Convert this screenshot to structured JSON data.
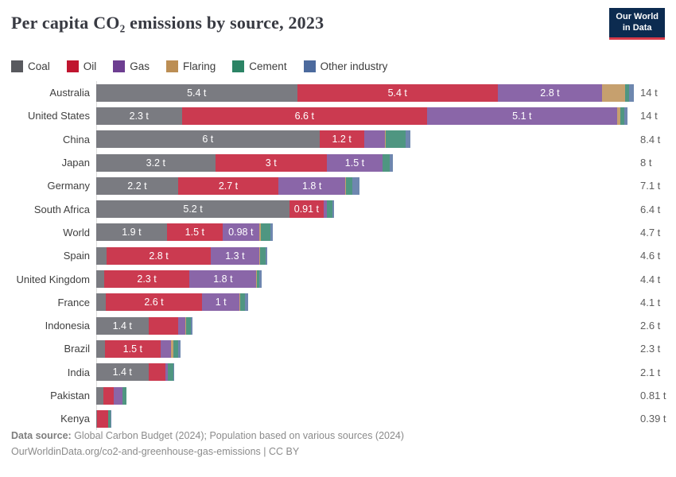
{
  "header": {
    "title": "Per capita CO₂ emissions by source, 2023",
    "logo": {
      "line1": "Our World",
      "line2": "in Data"
    }
  },
  "chart_data": {
    "type": "bar",
    "stacked": true,
    "orientation": "horizontal",
    "unit": "tonnes per person",
    "axis_max": 14.5,
    "colors": {
      "coal": {
        "legend": "#58595e",
        "bar": "#7a7b81"
      },
      "oil": {
        "legend": "#c0152f",
        "bar": "#cb3a50"
      },
      "gas": {
        "legend": "#6d3e91",
        "bar": "#8a66a8"
      },
      "flaring": {
        "legend": "#bc8e54",
        "bar": "#c6a06e"
      },
      "cement": {
        "legend": "#2c8465",
        "bar": "#4f9681"
      },
      "other": {
        "legend": "#4c6a9d",
        "bar": "#6e87af"
      }
    },
    "legend": [
      {
        "key": "coal",
        "label": "Coal"
      },
      {
        "key": "oil",
        "label": "Oil"
      },
      {
        "key": "gas",
        "label": "Gas"
      },
      {
        "key": "flaring",
        "label": "Flaring"
      },
      {
        "key": "cement",
        "label": "Cement"
      },
      {
        "key": "other",
        "label": "Other industry"
      }
    ],
    "rows": [
      {
        "entity": "Australia",
        "total_label": "14 t",
        "segments": [
          {
            "key": "coal",
            "value": 5.4,
            "label": "5.4 t"
          },
          {
            "key": "oil",
            "value": 5.4,
            "label": "5.4 t"
          },
          {
            "key": "gas",
            "value": 2.8,
            "label": "2.8 t"
          },
          {
            "key": "flaring",
            "value": 0.62,
            "label": ""
          },
          {
            "key": "cement",
            "value": 0.1,
            "label": ""
          },
          {
            "key": "other",
            "value": 0.14,
            "label": ""
          }
        ]
      },
      {
        "entity": "United States",
        "total_label": "14 t",
        "segments": [
          {
            "key": "coal",
            "value": 2.3,
            "label": "2.3 t"
          },
          {
            "key": "oil",
            "value": 6.6,
            "label": "6.6 t"
          },
          {
            "key": "gas",
            "value": 5.1,
            "label": "5.1 t"
          },
          {
            "key": "flaring",
            "value": 0.1,
            "label": ""
          },
          {
            "key": "cement",
            "value": 0.1,
            "label": ""
          },
          {
            "key": "other",
            "value": 0.09,
            "label": ""
          }
        ]
      },
      {
        "entity": "China",
        "total_label": "8.4 t",
        "segments": [
          {
            "key": "coal",
            "value": 6.0,
            "label": "6 t"
          },
          {
            "key": "oil",
            "value": 1.2,
            "label": "1.2 t"
          },
          {
            "key": "gas",
            "value": 0.56,
            "label": ""
          },
          {
            "key": "flaring",
            "value": 0.02,
            "label": ""
          },
          {
            "key": "cement",
            "value": 0.55,
            "label": ""
          },
          {
            "key": "other",
            "value": 0.12,
            "label": ""
          }
        ]
      },
      {
        "entity": "Japan",
        "total_label": "8 t",
        "segments": [
          {
            "key": "coal",
            "value": 3.2,
            "label": "3.2 t"
          },
          {
            "key": "oil",
            "value": 3.0,
            "label": "3 t"
          },
          {
            "key": "gas",
            "value": 1.5,
            "label": "1.5 t"
          },
          {
            "key": "cement",
            "value": 0.2,
            "label": ""
          },
          {
            "key": "other",
            "value": 0.07,
            "label": ""
          }
        ]
      },
      {
        "entity": "Germany",
        "total_label": "7.1 t",
        "segments": [
          {
            "key": "coal",
            "value": 2.2,
            "label": "2.2 t"
          },
          {
            "key": "oil",
            "value": 2.7,
            "label": "2.7 t"
          },
          {
            "key": "gas",
            "value": 1.8,
            "label": "1.8 t"
          },
          {
            "key": "flaring",
            "value": 0.01,
            "label": ""
          },
          {
            "key": "cement",
            "value": 0.18,
            "label": ""
          },
          {
            "key": "other",
            "value": 0.19,
            "label": ""
          }
        ]
      },
      {
        "entity": "South Africa",
        "total_label": "6.4 t",
        "segments": [
          {
            "key": "coal",
            "value": 5.2,
            "label": "5.2 t"
          },
          {
            "key": "oil",
            "value": 0.91,
            "label": "0.91 t"
          },
          {
            "key": "gas",
            "value": 0.1,
            "label": ""
          },
          {
            "key": "cement",
            "value": 0.14,
            "label": ""
          },
          {
            "key": "other",
            "value": 0.05,
            "label": ""
          }
        ]
      },
      {
        "entity": "World",
        "total_label": "4.7 t",
        "segments": [
          {
            "key": "coal",
            "value": 1.9,
            "label": "1.9 t"
          },
          {
            "key": "oil",
            "value": 1.5,
            "label": "1.5 t"
          },
          {
            "key": "gas",
            "value": 0.98,
            "label": "0.98 t"
          },
          {
            "key": "flaring",
            "value": 0.05,
            "label": ""
          },
          {
            "key": "cement",
            "value": 0.25,
            "label": ""
          },
          {
            "key": "other",
            "value": 0.07,
            "label": ""
          }
        ]
      },
      {
        "entity": "Spain",
        "total_label": "4.6 t",
        "segments": [
          {
            "key": "coal",
            "value": 0.28,
            "label": ""
          },
          {
            "key": "oil",
            "value": 2.8,
            "label": "2.8 t"
          },
          {
            "key": "gas",
            "value": 1.3,
            "label": "1.3 t"
          },
          {
            "key": "flaring",
            "value": 0.03,
            "label": ""
          },
          {
            "key": "cement",
            "value": 0.14,
            "label": ""
          },
          {
            "key": "other",
            "value": 0.05,
            "label": ""
          }
        ]
      },
      {
        "entity": "United Kingdom",
        "total_label": "4.4 t",
        "segments": [
          {
            "key": "coal",
            "value": 0.21,
            "label": ""
          },
          {
            "key": "oil",
            "value": 2.3,
            "label": "2.3 t"
          },
          {
            "key": "gas",
            "value": 1.8,
            "label": "1.8 t"
          },
          {
            "key": "flaring",
            "value": 0.01,
            "label": ""
          },
          {
            "key": "cement",
            "value": 0.07,
            "label": ""
          },
          {
            "key": "other",
            "value": 0.05,
            "label": ""
          }
        ]
      },
      {
        "entity": "France",
        "total_label": "4.1 t",
        "segments": [
          {
            "key": "coal",
            "value": 0.25,
            "label": ""
          },
          {
            "key": "oil",
            "value": 2.6,
            "label": "2.6 t"
          },
          {
            "key": "gas",
            "value": 1.0,
            "label": "1 t"
          },
          {
            "key": "flaring",
            "value": 0.02,
            "label": ""
          },
          {
            "key": "cement",
            "value": 0.12,
            "label": ""
          },
          {
            "key": "other",
            "value": 0.1,
            "label": ""
          }
        ]
      },
      {
        "entity": "Indonesia",
        "total_label": "2.6 t",
        "segments": [
          {
            "key": "coal",
            "value": 1.4,
            "label": "1.4 t"
          },
          {
            "key": "oil",
            "value": 0.8,
            "label": ""
          },
          {
            "key": "gas",
            "value": 0.19,
            "label": ""
          },
          {
            "key": "flaring",
            "value": 0.02,
            "label": ""
          },
          {
            "key": "cement",
            "value": 0.14,
            "label": ""
          },
          {
            "key": "other",
            "value": 0.05,
            "label": ""
          }
        ]
      },
      {
        "entity": "Brazil",
        "total_label": "2.3 t",
        "segments": [
          {
            "key": "coal",
            "value": 0.23,
            "label": ""
          },
          {
            "key": "oil",
            "value": 1.5,
            "label": "1.5 t"
          },
          {
            "key": "gas",
            "value": 0.29,
            "label": ""
          },
          {
            "key": "flaring",
            "value": 0.06,
            "label": ""
          },
          {
            "key": "cement",
            "value": 0.13,
            "label": ""
          },
          {
            "key": "other",
            "value": 0.06,
            "label": ""
          }
        ]
      },
      {
        "entity": "India",
        "total_label": "2.1 t",
        "segments": [
          {
            "key": "coal",
            "value": 1.4,
            "label": "1.4 t"
          },
          {
            "key": "oil",
            "value": 0.45,
            "label": ""
          },
          {
            "key": "gas",
            "value": 0.08,
            "label": ""
          },
          {
            "key": "cement",
            "value": 0.14,
            "label": ""
          },
          {
            "key": "other",
            "value": 0.03,
            "label": ""
          }
        ]
      },
      {
        "entity": "Pakistan",
        "total_label": "0.81 t",
        "segments": [
          {
            "key": "coal",
            "value": 0.2,
            "label": ""
          },
          {
            "key": "oil",
            "value": 0.28,
            "label": ""
          },
          {
            "key": "gas",
            "value": 0.23,
            "label": ""
          },
          {
            "key": "cement",
            "value": 0.1,
            "label": ""
          }
        ]
      },
      {
        "entity": "Kenya",
        "total_label": "0.39 t",
        "segments": [
          {
            "key": "coal",
            "value": 0.03,
            "label": ""
          },
          {
            "key": "oil",
            "value": 0.3,
            "label": ""
          },
          {
            "key": "cement",
            "value": 0.05,
            "label": ""
          },
          {
            "key": "other",
            "value": 0.01,
            "label": ""
          }
        ]
      }
    ]
  },
  "footer": {
    "source_label": "Data source:",
    "source_text": " Global Carbon Budget (2024); Population based on various sources (2024)",
    "license_line": "OurWorldinData.org/co2-and-greenhouse-gas-emissions | CC BY"
  }
}
